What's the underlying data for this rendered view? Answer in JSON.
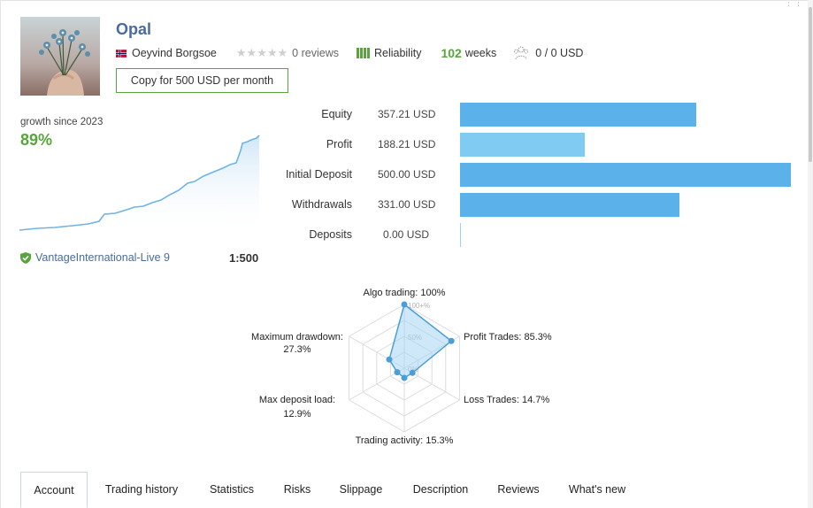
{
  "signal": {
    "title": "Opal",
    "author": "Oeyvind Borgsoe",
    "reviews_text": "0 reviews",
    "stars": "★★★★★",
    "reliability_label": "Reliability",
    "reliability_bars": 4,
    "weeks_value": "102",
    "weeks_label": "weeks",
    "subscribers": "0 / 0 USD",
    "copy_button": "Copy for 500 USD per month"
  },
  "growth": {
    "label": "growth since 2023",
    "value": "89%",
    "server": "VantageInternational-Live 9",
    "leverage": "1:500"
  },
  "financials": [
    {
      "label": "Equity",
      "value": "357.21 USD",
      "amount": 357.21
    },
    {
      "label": "Profit",
      "value": "188.21 USD",
      "amount": 188.21
    },
    {
      "label": "Initial Deposit",
      "value": "500.00 USD",
      "amount": 500.0
    },
    {
      "label": "Withdrawals",
      "value": "331.00 USD",
      "amount": 331.0
    },
    {
      "label": "Deposits",
      "value": "0.00 USD",
      "amount": 0.0
    }
  ],
  "radar": {
    "axes": [
      {
        "label": "Algo trading: 100%",
        "value": 100
      },
      {
        "label": "Profit Trades: 85.3%",
        "value": 85.3
      },
      {
        "label": "Loss Trades: 14.7%",
        "value": 14.7
      },
      {
        "label": "Trading activity: 15.3%",
        "value": 15.3
      },
      {
        "label": "Max deposit load:",
        "label2": "12.9%",
        "value": 12.9
      },
      {
        "label": "Maximum drawdown:",
        "label2": "27.3%",
        "value": 27.3
      }
    ],
    "scale_labels": [
      "100+%",
      "50%",
      "0%"
    ]
  },
  "tabs": [
    "Account",
    "Trading history",
    "Statistics",
    "Risks",
    "Slippage",
    "Description",
    "Reviews",
    "What's new"
  ],
  "active_tab": "Account",
  "colors": {
    "title": "#4a6b9e",
    "green": "#58a53d",
    "bar_blue": "#5bb2ea",
    "bar_light_blue": "#7fcbf2",
    "radar_fill": "#a5d6f5",
    "radar_line": "#4a9fd8"
  }
}
